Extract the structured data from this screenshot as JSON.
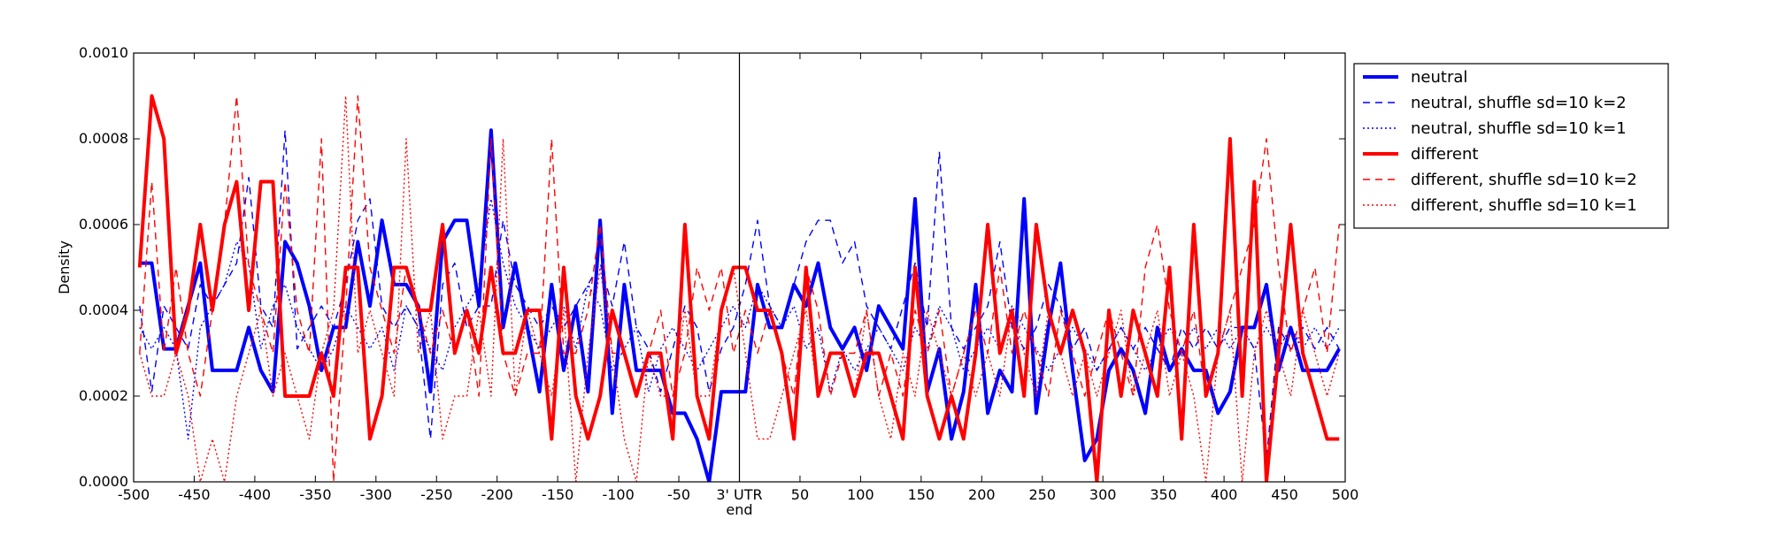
{
  "chart_data": {
    "type": "line",
    "title": "",
    "xlabel": "",
    "ylabel": "Density",
    "xlim": [
      -500,
      500
    ],
    "ylim": [
      0,
      0.001
    ],
    "grid": false,
    "legend_position": "outside-right-top",
    "x_tick_values": [
      -500,
      -450,
      -400,
      -350,
      -300,
      -250,
      -200,
      -150,
      -100,
      -50,
      0,
      50,
      100,
      150,
      200,
      250,
      300,
      350,
      400,
      450,
      500
    ],
    "x_tick_labels": [
      "-500",
      "-450",
      "-400",
      "-350",
      "-300",
      "-250",
      "-200",
      "-150",
      "-100",
      "-50",
      "3' UTR",
      "50",
      "100",
      "150",
      "200",
      "250",
      "300",
      "350",
      "400",
      "450",
      "500"
    ],
    "x_marker_sublabel": "end",
    "y_tick_values": [
      0,
      0.0002,
      0.0004,
      0.0006,
      0.0008,
      0.001
    ],
    "y_tick_labels": [
      "0.0000",
      "0.0002",
      "0.0004",
      "0.0006",
      "0.0008",
      "0.0010"
    ],
    "vertical_line_x": 0,
    "x": [
      -495,
      -485,
      -475,
      -465,
      -455,
      -445,
      -435,
      -425,
      -415,
      -405,
      -395,
      -385,
      -375,
      -365,
      -355,
      -345,
      -335,
      -325,
      -315,
      -305,
      -295,
      -285,
      -275,
      -265,
      -255,
      -245,
      -235,
      -225,
      -215,
      -205,
      -195,
      -185,
      -175,
      -165,
      -155,
      -145,
      -135,
      -125,
      -115,
      -105,
      -95,
      -85,
      -75,
      -65,
      -55,
      -45,
      -35,
      -25,
      -15,
      -5,
      5,
      15,
      25,
      35,
      45,
      55,
      65,
      75,
      85,
      95,
      105,
      115,
      125,
      135,
      145,
      155,
      165,
      175,
      185,
      195,
      205,
      215,
      225,
      235,
      245,
      255,
      265,
      275,
      285,
      295,
      305,
      315,
      325,
      335,
      345,
      355,
      365,
      375,
      385,
      395,
      405,
      415,
      425,
      435,
      445,
      455,
      465,
      475,
      485,
      495
    ],
    "series": [
      {
        "name": "neutral",
        "color": "#0000ff",
        "style": "solid",
        "width": 4,
        "values": [
          0.00051,
          0.00051,
          0.00031,
          0.00031,
          0.00041,
          0.00051,
          0.00026,
          0.00026,
          0.00026,
          0.00036,
          0.00026,
          0.00021,
          0.00056,
          0.00051,
          0.00041,
          0.00026,
          0.00036,
          0.00036,
          0.00056,
          0.00041,
          0.00061,
          0.00046,
          0.00046,
          0.00041,
          0.00021,
          0.00056,
          0.00061,
          0.00061,
          0.00041,
          0.00082,
          0.00036,
          0.00051,
          0.00036,
          0.00021,
          0.00046,
          0.00026,
          0.00041,
          0.00021,
          0.00061,
          0.00016,
          0.00046,
          0.00026,
          0.00026,
          0.00026,
          0.00016,
          0.00016,
          0.0001,
          0.0,
          0.00021,
          0.00021,
          0.00021,
          0.00046,
          0.00036,
          0.00036,
          0.00046,
          0.00041,
          0.00051,
          0.00036,
          0.00031,
          0.00036,
          0.00026,
          0.00041,
          0.00036,
          0.00031,
          0.00066,
          0.00021,
          0.00031,
          0.0001,
          0.00021,
          0.00046,
          0.00016,
          0.00026,
          0.00021,
          0.00066,
          0.00016,
          0.00036,
          0.00051,
          0.00026,
          5e-05,
          0.0001,
          0.00026,
          0.00031,
          0.00026,
          0.00016,
          0.00036,
          0.00026,
          0.00031,
          0.00026,
          0.00026,
          0.00016,
          0.00021,
          0.00036,
          0.00036,
          0.00046,
          0.00026,
          0.00036,
          0.00026,
          0.00026,
          0.00026,
          0.00031
        ]
      },
      {
        "name": "neutral, shuffle sd=10 k=2",
        "color": "#0000ff",
        "style": "dashed",
        "width": 1.4,
        "values": [
          0.00041,
          0.00021,
          0.00041,
          0.00036,
          0.00031,
          0.00046,
          0.00041,
          0.00046,
          0.00051,
          0.00071,
          0.00041,
          0.00036,
          0.00082,
          0.00031,
          0.00036,
          0.00041,
          0.00036,
          0.00046,
          0.00061,
          0.00066,
          0.00041,
          0.00036,
          0.00041,
          0.00036,
          0.0001,
          0.00046,
          0.00051,
          0.00036,
          0.00041,
          0.00041,
          0.00061,
          0.00046,
          0.00041,
          0.00036,
          0.00041,
          0.00036,
          0.00041,
          0.00046,
          0.00051,
          0.00041,
          0.00056,
          0.00036,
          0.00031,
          0.00021,
          0.00031,
          0.00041,
          0.00036,
          0.00021,
          0.00031,
          0.00036,
          0.00046,
          0.00061,
          0.00041,
          0.00036,
          0.00046,
          0.00056,
          0.00061,
          0.00061,
          0.00051,
          0.00056,
          0.00041,
          0.00036,
          0.00031,
          0.00041,
          0.00051,
          0.00036,
          0.00077,
          0.00036,
          0.00031,
          0.00036,
          0.00041,
          0.00056,
          0.00036,
          0.00031,
          0.00036,
          0.00046,
          0.00041,
          0.00031,
          0.00036,
          0.00026,
          0.00031,
          0.00036,
          0.00031,
          0.00036,
          0.00031,
          0.00026,
          0.00036,
          0.00031,
          0.00036,
          0.00031,
          0.00036,
          0.00036,
          0.00031,
          5e-05,
          0.00036,
          0.00031,
          0.00036,
          0.00031,
          0.00036,
          0.00031
        ]
      },
      {
        "name": "neutral, shuffle sd=10 k=1",
        "color": "#0000ff",
        "style": "dotted",
        "width": 1.4,
        "values": [
          0.00036,
          0.00031,
          0.00036,
          0.00031,
          0.0001,
          0.00036,
          0.00041,
          0.00046,
          0.00056,
          0.00051,
          0.00031,
          0.00041,
          0.00046,
          0.00036,
          0.00031,
          0.00026,
          0.00031,
          0.00041,
          0.00036,
          0.00031,
          0.00036,
          0.00026,
          0.00041,
          0.00036,
          0.00031,
          0.00026,
          0.00036,
          0.00041,
          0.00046,
          0.00066,
          0.00051,
          0.00041,
          0.00036,
          0.00031,
          0.00036,
          0.00041,
          0.00031,
          0.00046,
          0.00041,
          0.00026,
          0.00031,
          0.00036,
          0.00021,
          0.00031,
          0.00036,
          0.00031,
          0.00026,
          0.00031,
          0.00036,
          0.00041,
          0.00036,
          0.00046,
          0.00041,
          0.00036,
          0.00041,
          0.00031,
          0.00036,
          0.00021,
          0.00031,
          0.00026,
          0.00031,
          0.00036,
          0.00031,
          0.00026,
          0.00036,
          0.00031,
          0.00041,
          0.00036,
          0.00026,
          0.00031,
          0.00036,
          0.00031,
          0.00041,
          0.00036,
          0.00031,
          0.00026,
          0.00031,
          0.00036,
          0.00031,
          0.00026,
          0.00031,
          0.00036,
          0.00031,
          0.00026,
          0.00031,
          0.00036,
          0.00031,
          0.00036,
          0.00031,
          0.00036,
          0.00031,
          0.00036,
          0.00031,
          0.00036,
          0.00031,
          0.00036,
          0.00031,
          0.00036,
          0.00031,
          0.00036
        ]
      },
      {
        "name": "different",
        "color": "#ff0000",
        "style": "solid",
        "width": 4,
        "values": [
          0.0005,
          0.0009,
          0.0008,
          0.0003,
          0.0004,
          0.0006,
          0.0004,
          0.0006,
          0.0007,
          0.0004,
          0.0007,
          0.0007,
          0.0002,
          0.0002,
          0.0002,
          0.0003,
          0.0002,
          0.0005,
          0.0005,
          0.0001,
          0.0002,
          0.0005,
          0.0005,
          0.0004,
          0.0004,
          0.0006,
          0.0003,
          0.0004,
          0.0003,
          0.0005,
          0.0003,
          0.0003,
          0.0004,
          0.0004,
          0.0001,
          0.0005,
          0.0002,
          0.0001,
          0.0002,
          0.0004,
          0.0003,
          0.0002,
          0.0003,
          0.0003,
          0.0001,
          0.0006,
          0.0002,
          0.0001,
          0.0004,
          0.0005,
          0.0005,
          0.0004,
          0.0004,
          0.0003,
          0.0001,
          0.0005,
          0.0002,
          0.0003,
          0.0003,
          0.0002,
          0.0003,
          0.0003,
          0.0002,
          0.0001,
          0.0005,
          0.0002,
          0.0001,
          0.0002,
          0.0001,
          0.0003,
          0.0006,
          0.0003,
          0.0004,
          0.0002,
          0.0006,
          0.0004,
          0.0003,
          0.0004,
          0.0003,
          0.0,
          0.0004,
          0.0002,
          0.0004,
          0.0003,
          0.0002,
          0.0005,
          0.0001,
          0.0006,
          0.0002,
          0.0003,
          0.0008,
          0.0002,
          0.0007,
          0.0,
          0.0003,
          0.0006,
          0.0003,
          0.0002,
          0.0001,
          0.0001
        ]
      },
      {
        "name": "different, shuffle sd=10 k=2",
        "color": "#ff0000",
        "style": "dashed",
        "width": 1.4,
        "values": [
          0.0003,
          0.0007,
          0.0003,
          0.0005,
          0.0003,
          0.0002,
          0.0004,
          0.0006,
          0.0009,
          0.0005,
          0.0004,
          0.0003,
          0.0007,
          0.0004,
          0.0003,
          0.0008,
          0.0,
          0.0004,
          0.0009,
          0.0005,
          0.0004,
          0.0003,
          0.0005,
          0.0004,
          0.0003,
          0.0004,
          0.0003,
          0.0004,
          0.0002,
          0.0008,
          0.0003,
          0.0002,
          0.0003,
          0.0003,
          0.0008,
          0.0003,
          0.0003,
          0.0004,
          0.0006,
          0.0003,
          0.0003,
          0.0002,
          0.0003,
          0.0004,
          0.0002,
          0.0003,
          0.0005,
          0.0004,
          0.0005,
          0.0003,
          0.0004,
          0.0003,
          0.0004,
          0.0003,
          0.0002,
          0.0005,
          0.0004,
          0.0002,
          0.0003,
          0.0003,
          0.0004,
          0.0002,
          0.0003,
          0.0002,
          0.0004,
          0.0003,
          0.0004,
          0.0002,
          0.0003,
          0.0004,
          0.0003,
          0.0005,
          0.0003,
          0.0004,
          0.0003,
          0.0002,
          0.0004,
          0.0003,
          0.0002,
          0.0003,
          0.0004,
          0.0003,
          0.0002,
          0.0005,
          0.0006,
          0.0004,
          0.0003,
          0.0004,
          0.0002,
          0.0003,
          0.0004,
          0.0005,
          0.0006,
          0.0008,
          0.0005,
          0.0003,
          0.0004,
          0.0005,
          0.0003,
          0.0006
        ]
      },
      {
        "name": "different, shuffle sd=10 k=1",
        "color": "#ff0000",
        "style": "dotted",
        "width": 1.4,
        "values": [
          0.0003,
          0.0002,
          0.0002,
          0.0003,
          0.0002,
          0.0,
          0.0001,
          0.0,
          0.0002,
          0.0003,
          0.0004,
          0.0002,
          0.0003,
          0.0002,
          0.0001,
          0.0003,
          0.0004,
          0.0009,
          0.0003,
          0.0004,
          0.0003,
          0.0002,
          0.0008,
          0.0003,
          0.0004,
          0.0001,
          0.0002,
          0.0002,
          0.0004,
          0.0002,
          0.0008,
          0.0002,
          0.0004,
          0.0003,
          0.0002,
          0.0004,
          0.0,
          0.0003,
          0.0005,
          0.0003,
          0.0001,
          0.0,
          0.0003,
          0.0002,
          0.0002,
          0.0004,
          0.0002,
          0.0002,
          0.0004,
          0.0005,
          0.0003,
          0.0001,
          0.0001,
          0.0002,
          0.0003,
          0.0004,
          0.0002,
          0.0003,
          0.0003,
          0.0002,
          0.0004,
          0.0002,
          0.0001,
          0.0003,
          0.0002,
          0.0004,
          0.0003,
          0.0002,
          0.0003,
          0.0002,
          0.0003,
          0.0002,
          0.0004,
          0.0003,
          0.0002,
          0.0004,
          0.0003,
          0.0002,
          0.0003,
          0.0002,
          0.0003,
          0.0004,
          0.0002,
          0.0003,
          0.0004,
          0.0002,
          0.0003,
          0.0002,
          0.0,
          0.0003,
          0.0004,
          0.0,
          0.0003,
          0.0004,
          0.0003,
          0.0002,
          0.0004,
          0.0003,
          0.0002,
          0.0003
        ]
      }
    ]
  }
}
